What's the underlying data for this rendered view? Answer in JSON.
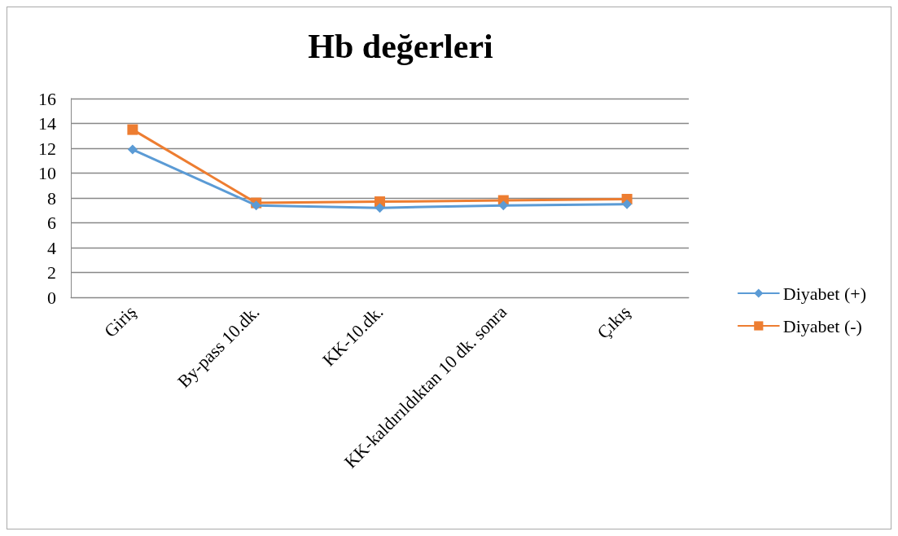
{
  "chart_data": {
    "type": "line",
    "title": "Hb değerleri",
    "categories": [
      "Giriş",
      "By-pass 10.dk.",
      "KK-10.dk.",
      "KK-kaldırıldıktan 10 dk. sonra",
      "Çıkış"
    ],
    "series": [
      {
        "name": "Diyabet (+)",
        "color": "#5b9bd5",
        "marker": "diamond",
        "values": [
          11.9,
          7.4,
          7.2,
          7.4,
          7.5
        ]
      },
      {
        "name": "Diyabet (-)",
        "color": "#ed7d31",
        "marker": "square",
        "values": [
          13.5,
          7.6,
          7.7,
          7.8,
          7.9
        ]
      }
    ],
    "ylim": [
      0,
      16
    ],
    "yticks": [
      0,
      2,
      4,
      6,
      8,
      10,
      12,
      14,
      16
    ],
    "grid": "y",
    "legend": "right",
    "line_style": "solid"
  }
}
